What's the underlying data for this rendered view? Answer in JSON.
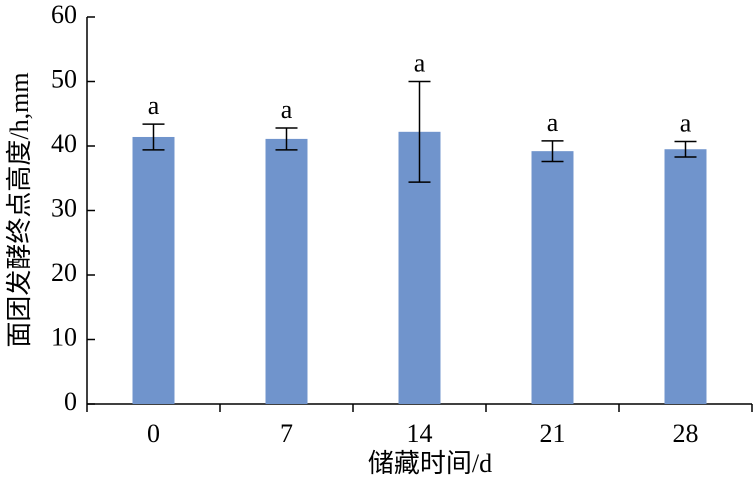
{
  "chart_data": {
    "type": "bar",
    "x_label": "储藏时间/d",
    "y_label": "面团发酵终点高度/h,mm",
    "categories": [
      "0",
      "7",
      "14",
      "21",
      "28"
    ],
    "values": [
      41.4,
      41.1,
      42.2,
      39.2,
      39.5
    ],
    "errors": [
      2.0,
      1.7,
      7.8,
      1.6,
      1.2
    ],
    "annotations": [
      "a",
      "a",
      "a",
      "a",
      "a"
    ],
    "color": "#7094cc",
    "ylim": [
      0,
      60
    ],
    "yticks": [
      0,
      10,
      20,
      30,
      40,
      50,
      60
    ]
  }
}
